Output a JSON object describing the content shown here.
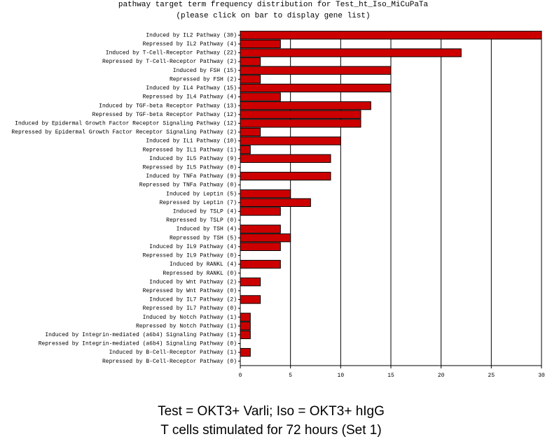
{
  "chart_data": {
    "type": "hbar",
    "title": "pathway target term frequency distribution for Test_ht_Iso_MiCuPaTa",
    "subtitle": "(please click on bar to display gene list)",
    "categories": [
      "Induced by IL2 Pathway (30)",
      "Repressed by IL2 Pathway (4)",
      "Induced by T-Cell-Receptor Pathway (22)",
      "Repressed by T-Cell-Receptor Pathway (2)",
      "Induced by FSH (15)",
      "Repressed by FSH (2)",
      "Induced by IL4 Pathway (15)",
      "Repressed by IL4 Pathway (4)",
      "Induced by TGF-beta Receptor Pathway (13)",
      "Repressed by TGF-beta Receptor Pathway (12)",
      "Induced by Epidermal Growth Factor Receptor Signaling Pathway (12)",
      "Repressed by Epidermal Growth Factor Receptor Signaling Pathway (2)",
      "Induced by IL1 Pathway (10)",
      "Repressed by IL1 Pathway (1)",
      "Induced by IL5 Pathway (9)",
      "Repressed by IL5 Pathway (0)",
      "Induced by TNFa Pathway (9)",
      "Repressed by TNFa Pathway (0)",
      "Induced by Leptin (5)",
      "Repressed by Leptin (7)",
      "Induced by TSLP (4)",
      "Repressed by TSLP (0)",
      "Induced by TSH (4)",
      "Repressed by TSH (5)",
      "Induced by IL9 Pathway (4)",
      "Repressed by IL9 Pathway (0)",
      "Induced by RANKL (4)",
      "Repressed by RANKL (0)",
      "Induced by Wnt Pathway (2)",
      "Repressed by Wnt Pathway (0)",
      "Induced by IL7 Pathway (2)",
      "Repressed by IL7 Pathway (0)",
      "Induced by Notch Pathway (1)",
      "Repressed by Notch Pathway (1)",
      "Induced by Integrin-mediated (a6b4) Signaling Pathway (1)",
      "Repressed by Integrin-mediated (a6b4) Signaling Pathway (0)",
      "Induced by B-Cell-Receptor Pathway (1)",
      "Repressed by B-Cell-Receptor Pathway (0)"
    ],
    "values": [
      30,
      4,
      22,
      2,
      15,
      2,
      15,
      4,
      13,
      12,
      12,
      2,
      10,
      1,
      9,
      0,
      9,
      0,
      5,
      7,
      4,
      0,
      4,
      5,
      4,
      0,
      4,
      0,
      2,
      0,
      2,
      0,
      1,
      1,
      1,
      0,
      1,
      0
    ],
    "color": "#cc0000",
    "xlim": [
      0,
      30
    ],
    "xticks": [
      0,
      5,
      10,
      15,
      20,
      25,
      30
    ],
    "grid": true
  },
  "caption": [
    "Test = OKT3+ Varli; Iso = OKT3+ hIgG",
    "T cells stimulated for 72 hours (Set 1)"
  ]
}
